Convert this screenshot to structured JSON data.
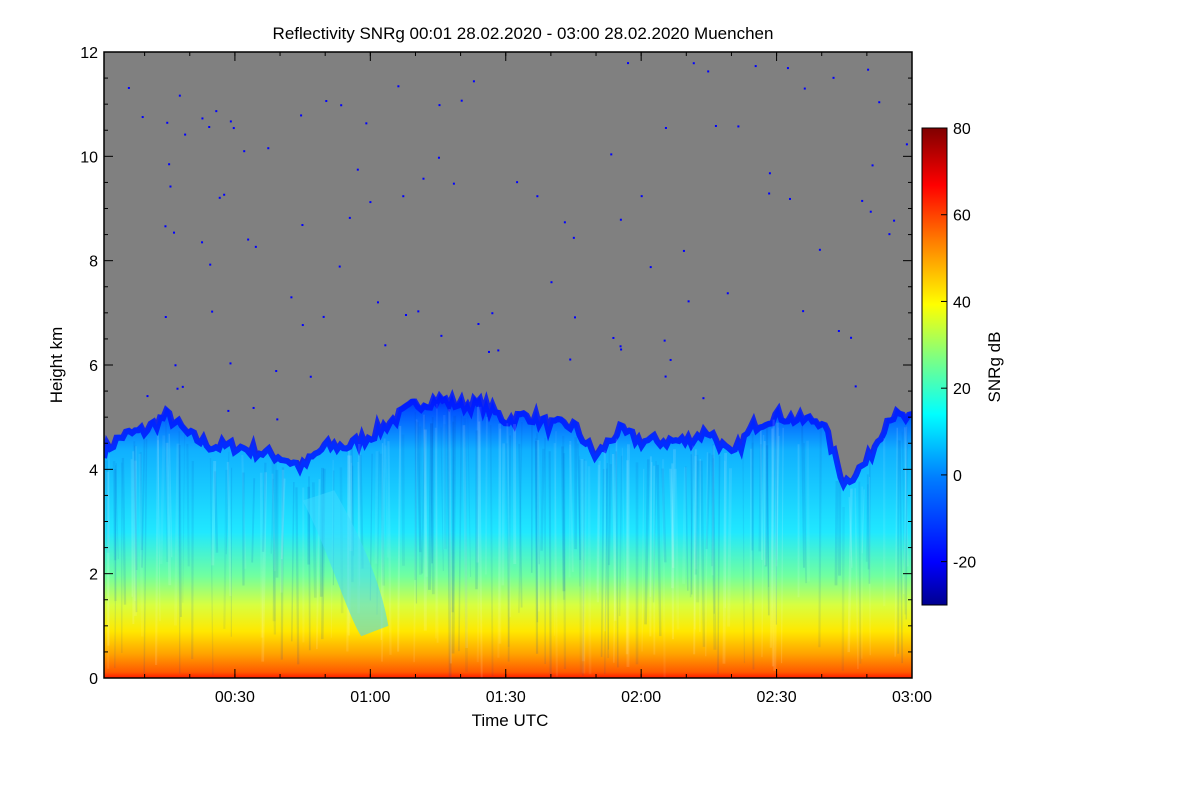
{
  "chart_data": {
    "type": "heatmap",
    "title": "Reflectivity SNRg   00:01 28.02.2020 - 03:00 28.02.2020 Muenchen",
    "xlabel": "Time UTC",
    "ylabel": "Height km",
    "colorbar_label": "SNRg dB",
    "x_ticks": [
      "00:30",
      "01:00",
      "01:30",
      "02:00",
      "02:30",
      "03:00"
    ],
    "x_tick_minutes": [
      30,
      60,
      90,
      120,
      150,
      180
    ],
    "xlim_minutes": [
      1,
      180
    ],
    "y_ticks": [
      "0",
      "2",
      "4",
      "6",
      "8",
      "10",
      "12"
    ],
    "ylim": [
      0,
      12
    ],
    "colorbar_ticks": [
      "-20",
      "0",
      "20",
      "40",
      "60",
      "80"
    ],
    "colorbar_range": [
      -30,
      80
    ],
    "background_color": "#808080",
    "colormap": [
      "#00008f",
      "#0000ff",
      "#0080ff",
      "#00ffff",
      "#80ff80",
      "#ffff00",
      "#ff8000",
      "#ff0000",
      "#800000"
    ],
    "echo_top_km": [
      [
        1,
        4.4
      ],
      [
        5,
        4.7
      ],
      [
        10,
        4.8
      ],
      [
        15,
        5.1
      ],
      [
        20,
        4.7
      ],
      [
        25,
        4.5
      ],
      [
        30,
        4.5
      ],
      [
        35,
        4.4
      ],
      [
        40,
        4.3
      ],
      [
        45,
        4.1
      ],
      [
        50,
        4.5
      ],
      [
        55,
        4.5
      ],
      [
        60,
        4.7
      ],
      [
        65,
        5.0
      ],
      [
        70,
        5.3
      ],
      [
        75,
        5.4
      ],
      [
        80,
        5.3
      ],
      [
        85,
        5.3
      ],
      [
        90,
        5.0
      ],
      [
        95,
        5.1
      ],
      [
        100,
        4.9
      ],
      [
        105,
        4.9
      ],
      [
        110,
        4.3
      ],
      [
        115,
        4.8
      ],
      [
        120,
        4.6
      ],
      [
        125,
        4.6
      ],
      [
        130,
        4.6
      ],
      [
        135,
        4.8
      ],
      [
        140,
        4.3
      ],
      [
        145,
        4.9
      ],
      [
        150,
        5.1
      ],
      [
        155,
        5.0
      ],
      [
        160,
        5.0
      ],
      [
        165,
        3.8
      ],
      [
        170,
        4.2
      ],
      [
        175,
        5.1
      ],
      [
        180,
        5.0
      ]
    ]
  }
}
